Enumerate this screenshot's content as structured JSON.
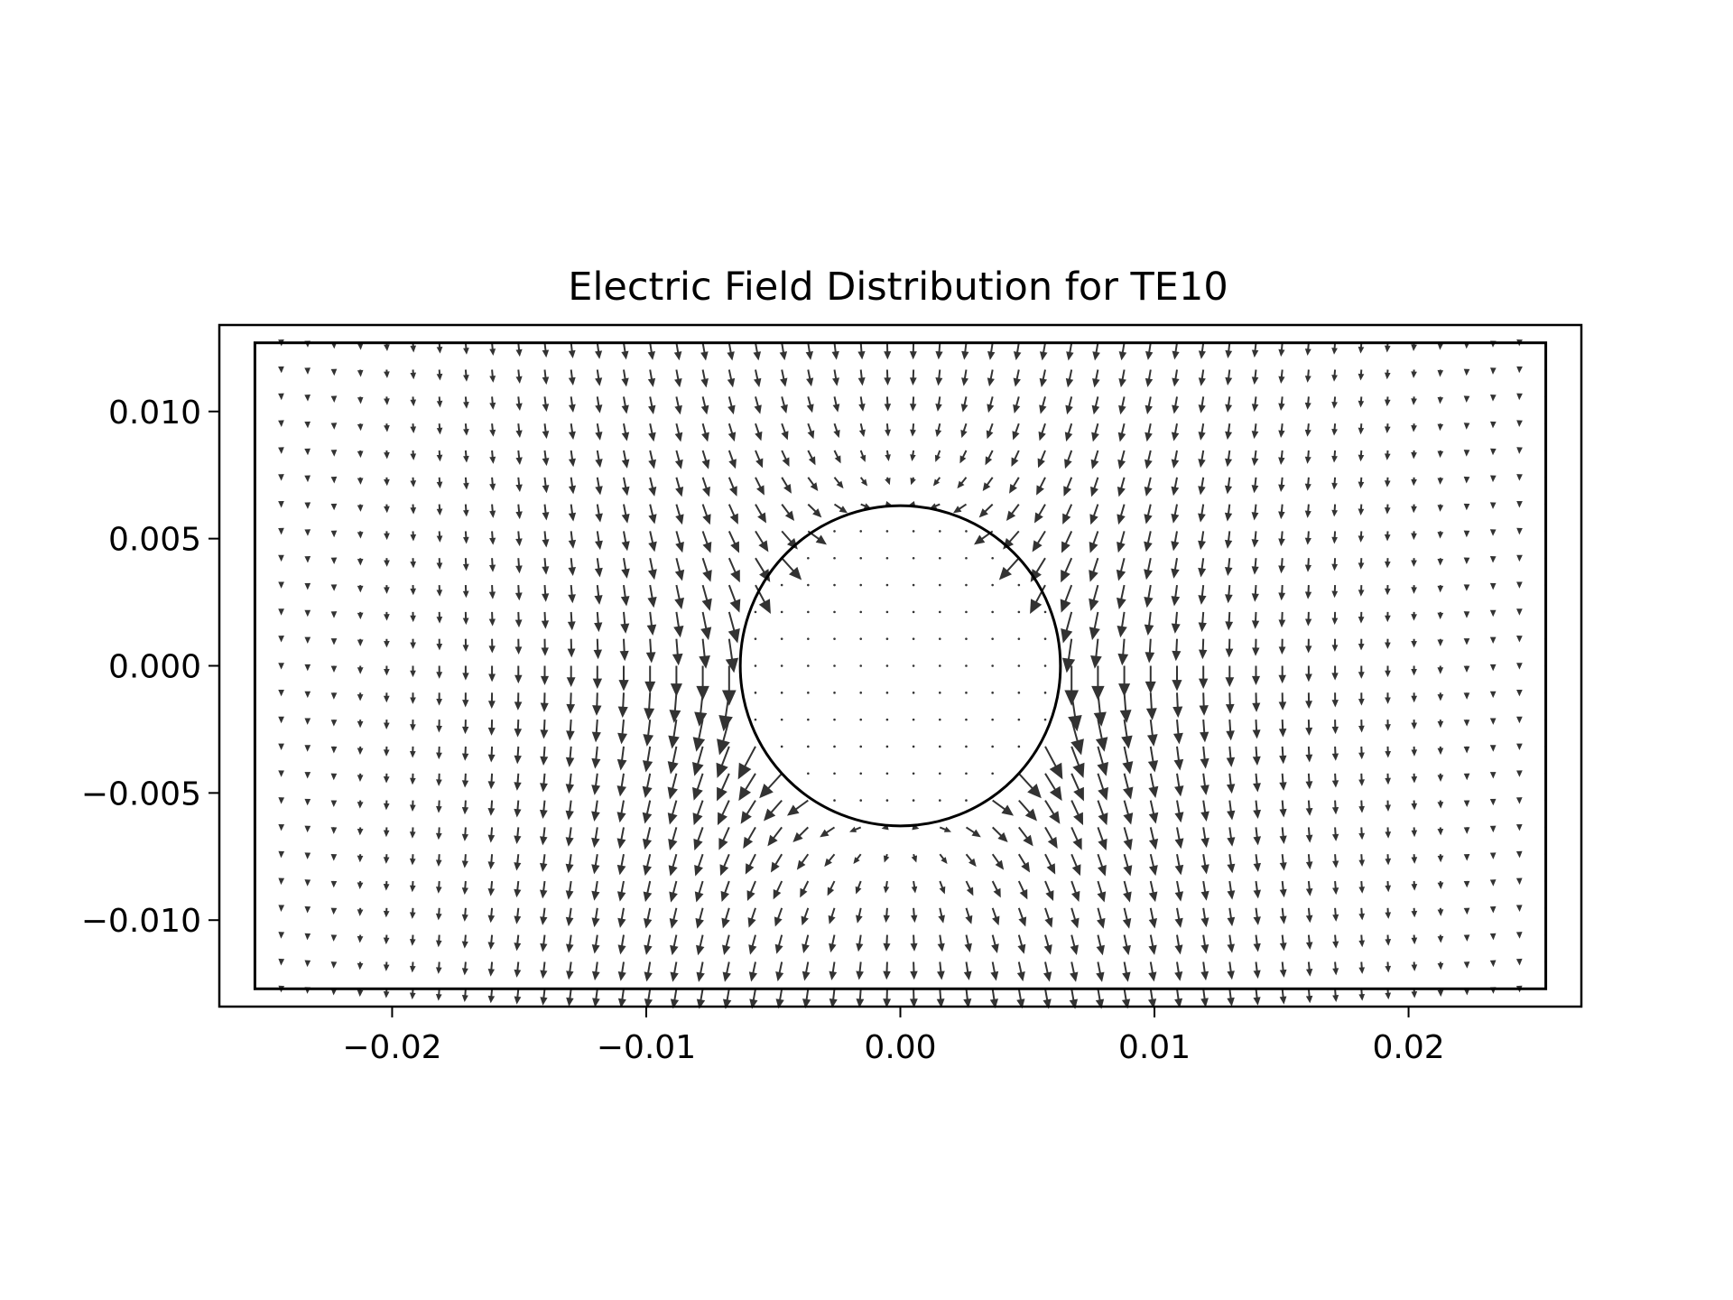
{
  "chart_data": {
    "type": "quiver",
    "title": "Electric Field Distribution for TE10",
    "xlabel": "",
    "ylabel": "",
    "xlim": [
      -0.0268,
      0.0268
    ],
    "ylim": [
      -0.0134,
      0.0134
    ],
    "x_ticks": [
      -0.02,
      -0.01,
      0.0,
      0.01,
      0.02
    ],
    "x_tick_labels": [
      "−0.02",
      "−0.01",
      "0.00",
      "0.01",
      "0.02"
    ],
    "y_ticks": [
      -0.01,
      -0.005,
      0.0,
      0.005,
      0.01
    ],
    "y_tick_labels": [
      "−0.010",
      "−0.005",
      "0.000",
      "0.005",
      "0.010"
    ],
    "grid": false,
    "waveguide": {
      "x_range": [
        -0.0254,
        0.0254
      ],
      "y_range": [
        -0.0127,
        0.0127
      ]
    },
    "circle": {
      "center": [
        0,
        0
      ],
      "radius": 0.0063
    },
    "field_grid": {
      "nx": 50,
      "ny": 25,
      "x_range": [
        -0.0254,
        0.0254
      ],
      "y_range": [
        -0.0127,
        0.0127
      ]
    },
    "colors": {
      "arrows": "#333333",
      "lines": "#000000",
      "background": "#ffffff"
    }
  }
}
